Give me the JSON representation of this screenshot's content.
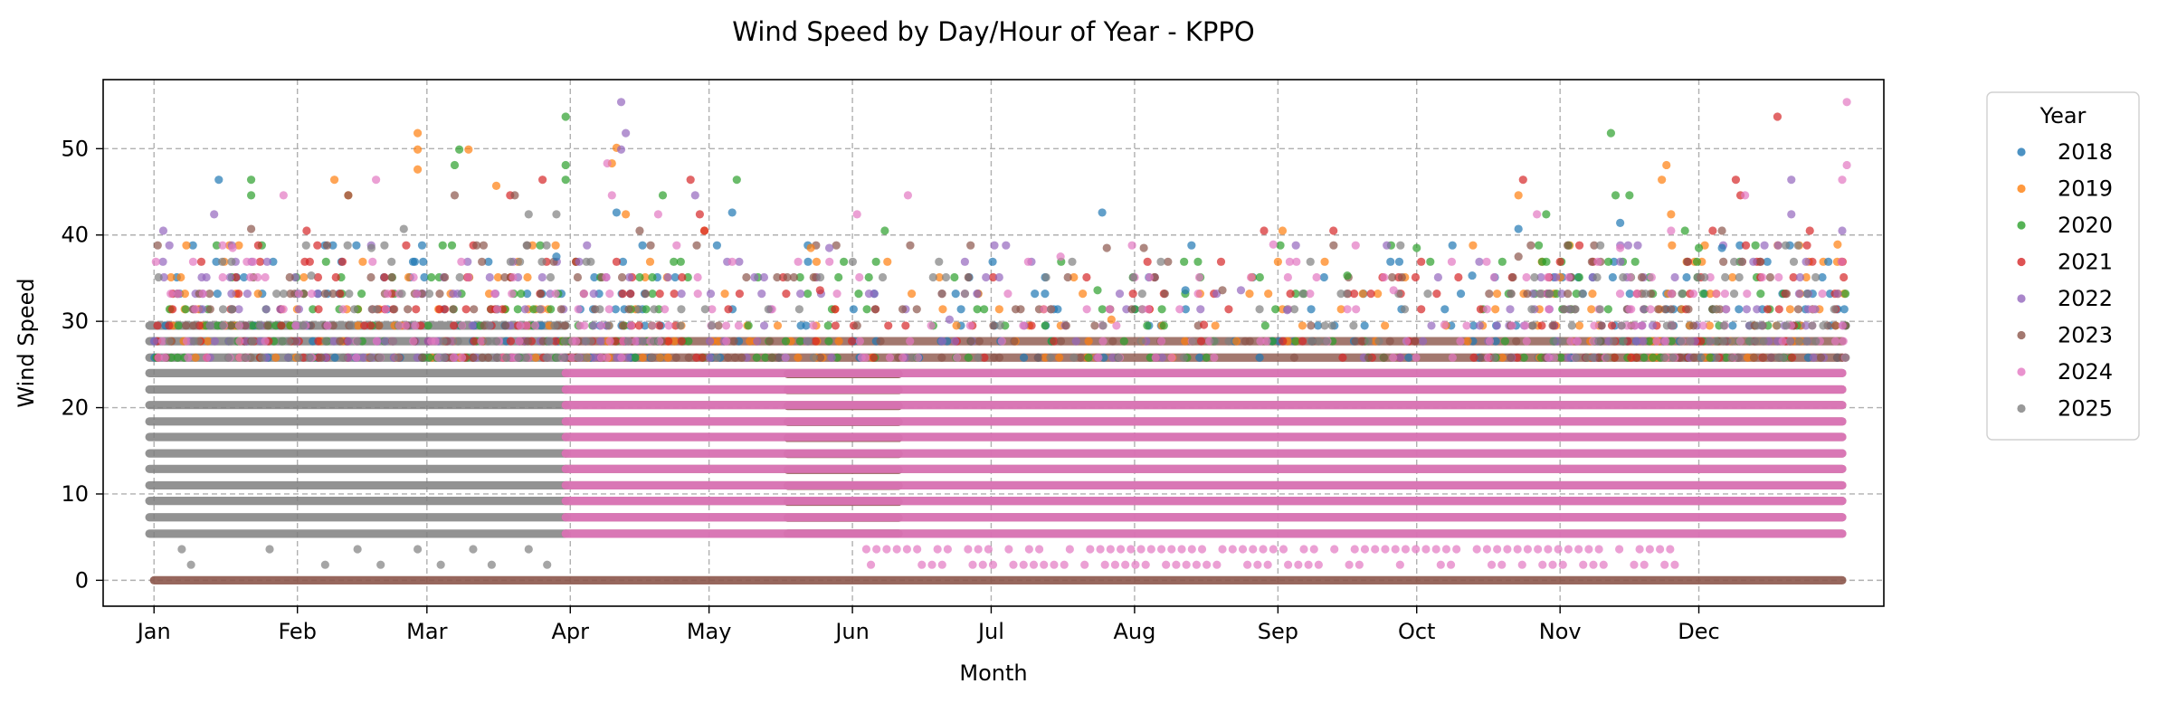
{
  "chart_data": {
    "type": "scatter",
    "title": "Wind Speed by Day/Hour of Year - KPPO",
    "xlabel": "Month",
    "ylabel": "Wind Speed",
    "x_unit": "day of year",
    "xlim": [
      -10,
      375
    ],
    "ylim": [
      -3,
      58
    ],
    "x_ticks": [
      {
        "label": "Jan",
        "value": 1
      },
      {
        "label": "Feb",
        "value": 32
      },
      {
        "label": "Mar",
        "value": 60
      },
      {
        "label": "Apr",
        "value": 91
      },
      {
        "label": "May",
        "value": 121
      },
      {
        "label": "Jun",
        "value": 152
      },
      {
        "label": "Jul",
        "value": 182
      },
      {
        "label": "Aug",
        "value": 213
      },
      {
        "label": "Sep",
        "value": 244
      },
      {
        "label": "Oct",
        "value": 274
      },
      {
        "label": "Nov",
        "value": 305
      },
      {
        "label": "Dec",
        "value": 335
      }
    ],
    "y_ticks": [
      0,
      10,
      20,
      30,
      40,
      50
    ],
    "grid": true,
    "legend": {
      "title": "Year",
      "placement": "outside-right"
    },
    "series": [
      {
        "name": "2018",
        "color": "#1f77b4",
        "points": [
          [
            15,
            46.4
          ],
          [
            101,
            42.6
          ],
          [
            126,
            42.6
          ],
          [
            206,
            42.6
          ],
          [
            224,
            33.6
          ],
          [
            286,
            35.3
          ],
          [
            296,
            40.7
          ],
          [
            318,
            41.4
          ],
          [
            340,
            38.5
          ],
          [
            363,
            36.9
          ],
          [
            57,
            36.9
          ],
          [
            88,
            37.5
          ]
        ]
      },
      {
        "name": "2019",
        "color": "#ff7f0e",
        "points": [
          [
            58,
            51.8
          ],
          [
            58,
            49.9
          ],
          [
            58,
            47.6
          ],
          [
            69,
            49.9
          ],
          [
            75,
            45.7
          ],
          [
            101,
            50.1
          ],
          [
            100,
            48.3
          ],
          [
            103,
            42.4
          ],
          [
            120,
            40.5
          ],
          [
            143,
            38.5
          ],
          [
            208,
            30.2
          ],
          [
            245,
            40.5
          ],
          [
            244,
            36.9
          ],
          [
            296,
            44.6
          ],
          [
            328,
            48.1
          ],
          [
            327,
            46.4
          ],
          [
            329,
            42.4
          ],
          [
            365,
            38.9
          ],
          [
            40,
            46.4
          ],
          [
            43,
            44.6
          ]
        ]
      },
      {
        "name": "2020",
        "color": "#2ca02c",
        "points": [
          [
            22,
            46.4
          ],
          [
            22,
            44.6
          ],
          [
            67,
            49.9
          ],
          [
            66,
            48.1
          ],
          [
            90,
            53.7
          ],
          [
            90,
            48.1
          ],
          [
            90,
            46.4
          ],
          [
            111,
            44.6
          ],
          [
            127,
            46.4
          ],
          [
            159,
            40.5
          ],
          [
            205,
            33.6
          ],
          [
            259,
            35.3
          ],
          [
            274,
            38.5
          ],
          [
            302,
            42.4
          ],
          [
            316,
            51.8
          ],
          [
            317,
            44.6
          ],
          [
            320,
            44.6
          ],
          [
            332,
            40.5
          ],
          [
            335,
            38.5
          ]
        ]
      },
      {
        "name": "2021",
        "color": "#d62728",
        "points": [
          [
            34,
            40.5
          ],
          [
            78,
            44.6
          ],
          [
            85,
            46.4
          ],
          [
            117,
            46.4
          ],
          [
            119,
            42.4
          ],
          [
            120,
            40.5
          ],
          [
            145,
            33.6
          ],
          [
            228,
            29.6
          ],
          [
            241,
            40.5
          ],
          [
            256,
            40.5
          ],
          [
            297,
            46.4
          ],
          [
            305,
            36.9
          ],
          [
            338,
            40.5
          ],
          [
            343,
            46.4
          ],
          [
            344,
            44.6
          ],
          [
            352,
            53.7
          ],
          [
            359,
            40.5
          ]
        ]
      },
      {
        "name": "2022",
        "color": "#9467bd",
        "points": [
          [
            3,
            40.5
          ],
          [
            14,
            42.4
          ],
          [
            102,
            55.4
          ],
          [
            103,
            51.8
          ],
          [
            102,
            49.9
          ],
          [
            118,
            44.6
          ],
          [
            147,
            38.5
          ],
          [
            173,
            30.2
          ],
          [
            236,
            33.6
          ],
          [
            246,
            31.3
          ],
          [
            355,
            46.4
          ],
          [
            355,
            42.4
          ],
          [
            366,
            40.5
          ]
        ]
      },
      {
        "name": "2023",
        "color": "#8c564b",
        "points": [
          [
            22,
            40.7
          ],
          [
            43,
            44.6
          ],
          [
            66,
            44.6
          ],
          [
            79,
            44.6
          ],
          [
            106,
            40.5
          ],
          [
            207,
            38.5
          ],
          [
            215,
            38.5
          ],
          [
            232,
            33.6
          ],
          [
            296,
            37.5
          ],
          [
            340,
            40.5
          ]
        ]
      },
      {
        "name": "2024",
        "color": "#e377c2",
        "points": [
          [
            18,
            38.5
          ],
          [
            29,
            44.6
          ],
          [
            49,
            46.4
          ],
          [
            99,
            48.3
          ],
          [
            100,
            44.6
          ],
          [
            110,
            42.4
          ],
          [
            153,
            42.4
          ],
          [
            164,
            44.6
          ],
          [
            190,
            36.9
          ],
          [
            197,
            37.5
          ],
          [
            243,
            38.9
          ],
          [
            269,
            33.6
          ],
          [
            300,
            42.4
          ],
          [
            318,
            38.5
          ],
          [
            329,
            40.5
          ],
          [
            345,
            44.6
          ],
          [
            367,
            55.4
          ],
          [
            367,
            48.1
          ],
          [
            366,
            46.4
          ],
          [
            320,
            31.4
          ],
          [
            280,
            29.6
          ]
        ]
      },
      {
        "name": "2025",
        "color": "#7f7f7f",
        "points": [
          [
            7,
            3.6
          ],
          [
            9,
            1.8
          ],
          [
            26,
            3.6
          ],
          [
            38,
            1.8
          ],
          [
            45,
            3.6
          ],
          [
            50,
            1.8
          ],
          [
            58,
            3.6
          ],
          [
            63,
            1.8
          ],
          [
            70,
            3.6
          ],
          [
            74,
            1.8
          ],
          [
            82,
            3.6
          ],
          [
            86,
            1.8
          ],
          [
            35,
            35.3
          ],
          [
            48,
            38.5
          ],
          [
            55,
            40.7
          ],
          [
            82,
            42.4
          ],
          [
            88,
            42.4
          ]
        ]
      }
    ]
  }
}
